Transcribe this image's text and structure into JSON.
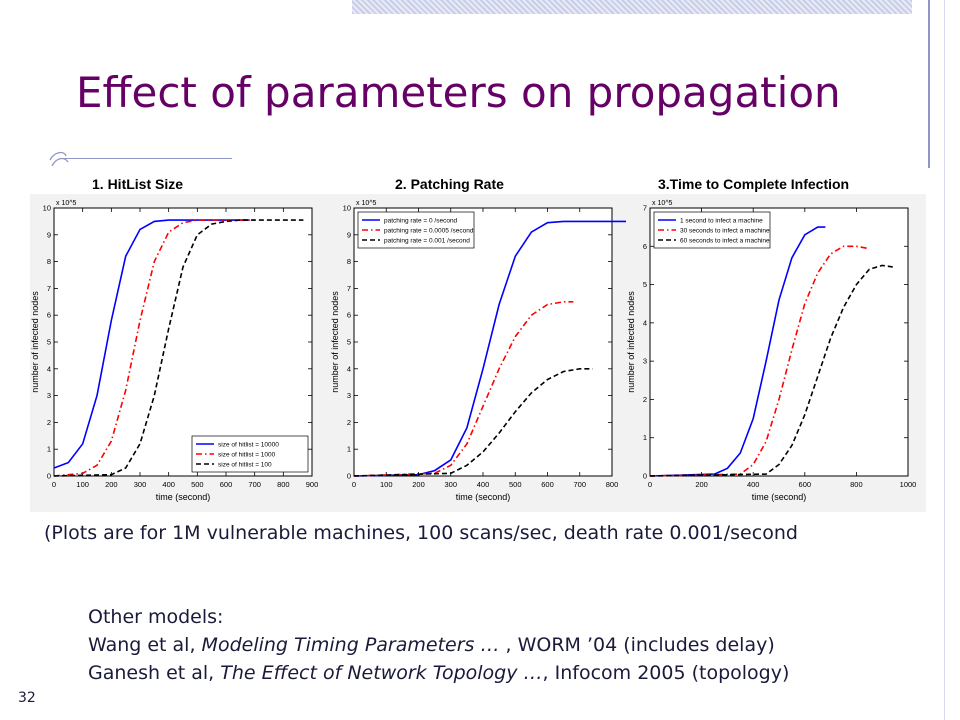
{
  "slide": {
    "title": "Effect of parameters on propagation",
    "caption": "(Plots are for 1M vulnerable machines, 100 scans/sec, death rate 0.001/second",
    "other_models": {
      "heading": "Other models:",
      "line1": {
        "prefix": "Wang et al, ",
        "italic": "Modeling Timing Parameters … ",
        "suffix": ", WORM ’04 (includes delay)"
      },
      "line2": {
        "prefix": "Ganesh et al, ",
        "italic": "The Effect of Network Topology …",
        "suffix": ", Infocom 2005 (topology)"
      }
    },
    "slide_number": "32"
  },
  "colors": {
    "title": "#660066",
    "series1": "#0000ff",
    "series2": "#ff0000",
    "series3": "#000000"
  },
  "chart_data": [
    {
      "type": "line",
      "title": "1.   HitList Size",
      "xlabel": "time (second)",
      "ylabel": "number of infected nodes",
      "y_multiplier": "x 10^5",
      "xlim": [
        0,
        900
      ],
      "ylim": [
        0,
        10
      ],
      "xticks": [
        0,
        100,
        200,
        300,
        400,
        500,
        600,
        700,
        800,
        900
      ],
      "yticks": [
        0,
        1,
        2,
        3,
        4,
        5,
        6,
        7,
        8,
        9,
        10
      ],
      "legend_position": "bottom-right",
      "series": [
        {
          "name": "size of hitlist = 10000",
          "style": "solid",
          "x": [
            0,
            50,
            100,
            150,
            200,
            250,
            300,
            350,
            400,
            450,
            500,
            550,
            600,
            680
          ],
          "y": [
            0.3,
            0.5,
            1.2,
            3.0,
            5.8,
            8.2,
            9.2,
            9.5,
            9.55,
            9.55,
            9.55,
            9.55,
            9.55,
            9.55
          ]
        },
        {
          "name": "size of hitlist = 1000",
          "style": "dashdot",
          "x": [
            0,
            100,
            150,
            200,
            250,
            300,
            350,
            400,
            450,
            500,
            550,
            600,
            650,
            700
          ],
          "y": [
            0,
            0.1,
            0.4,
            1.3,
            3.2,
            5.8,
            8.0,
            9.1,
            9.45,
            9.55,
            9.55,
            9.55,
            9.55,
            9.55
          ]
        },
        {
          "name": "size of hitlist = 100",
          "style": "dashed",
          "x": [
            0,
            200,
            250,
            300,
            350,
            400,
            450,
            500,
            550,
            600,
            650,
            700,
            750,
            800,
            870
          ],
          "y": [
            0,
            0.05,
            0.3,
            1.2,
            3.0,
            5.5,
            7.8,
            9.0,
            9.4,
            9.5,
            9.55,
            9.55,
            9.55,
            9.55,
            9.55
          ]
        }
      ]
    },
    {
      "type": "line",
      "title": "2. Patching Rate",
      "xlabel": "time (second)",
      "ylabel": "number of infected nodes",
      "y_multiplier": "x 10^5",
      "xlim": [
        0,
        800
      ],
      "ylim": [
        0,
        10
      ],
      "xticks": [
        0,
        100,
        200,
        300,
        400,
        500,
        600,
        700,
        800
      ],
      "yticks": [
        0,
        1,
        2,
        3,
        4,
        5,
        6,
        7,
        8,
        9,
        10
      ],
      "legend_position": "top-left",
      "series": [
        {
          "name": "patching rate = 0 /second",
          "style": "solid",
          "x": [
            0,
            200,
            250,
            300,
            350,
            400,
            450,
            500,
            550,
            600,
            650,
            700,
            750,
            800,
            860
          ],
          "y": [
            0,
            0.05,
            0.2,
            0.6,
            1.8,
            4.0,
            6.4,
            8.2,
            9.1,
            9.45,
            9.5,
            9.5,
            9.5,
            9.5,
            9.5
          ]
        },
        {
          "name": "patching rate = 0.0005 /second",
          "style": "dashdot",
          "x": [
            0,
            250,
            300,
            350,
            400,
            450,
            500,
            550,
            600,
            650,
            680
          ],
          "y": [
            0,
            0.1,
            0.4,
            1.2,
            2.6,
            4.0,
            5.2,
            6.0,
            6.4,
            6.5,
            6.5
          ]
        },
        {
          "name": "patching rate = 0.001 /second",
          "style": "dashed",
          "x": [
            0,
            300,
            350,
            400,
            450,
            500,
            550,
            600,
            650,
            700,
            740
          ],
          "y": [
            0,
            0.1,
            0.4,
            0.9,
            1.6,
            2.4,
            3.1,
            3.6,
            3.9,
            4.0,
            4.0
          ]
        }
      ]
    },
    {
      "type": "line",
      "title": "3.Time to Complete Infection",
      "xlabel": "time (second)",
      "ylabel": "number of infected nodes",
      "y_multiplier": "x 10^5",
      "xlim": [
        0,
        1000
      ],
      "ylim": [
        0,
        7
      ],
      "xticks": [
        0,
        200,
        400,
        600,
        800,
        1000
      ],
      "yticks": [
        0,
        1,
        2,
        3,
        4,
        5,
        6,
        7
      ],
      "legend_position": "top-left",
      "series": [
        {
          "name": "1 second to infect a machine",
          "style": "solid",
          "x": [
            0,
            250,
            300,
            350,
            400,
            450,
            500,
            550,
            600,
            650,
            680
          ],
          "y": [
            0,
            0.05,
            0.2,
            0.6,
            1.5,
            3.0,
            4.6,
            5.7,
            6.3,
            6.5,
            6.5
          ]
        },
        {
          "name": "30 seconds to infect a machine",
          "style": "dashdot",
          "x": [
            0,
            350,
            400,
            450,
            500,
            550,
            600,
            650,
            700,
            750,
            800,
            840
          ],
          "y": [
            0,
            0.05,
            0.3,
            0.9,
            2.0,
            3.3,
            4.5,
            5.3,
            5.8,
            6.0,
            6.0,
            5.95
          ]
        },
        {
          "name": "60 seconds to infect a machine",
          "style": "dashed",
          "x": [
            0,
            450,
            500,
            550,
            600,
            650,
            700,
            750,
            800,
            850,
            900,
            950
          ],
          "y": [
            0,
            0.05,
            0.3,
            0.8,
            1.6,
            2.6,
            3.6,
            4.4,
            5.0,
            5.4,
            5.5,
            5.45
          ]
        }
      ]
    }
  ]
}
